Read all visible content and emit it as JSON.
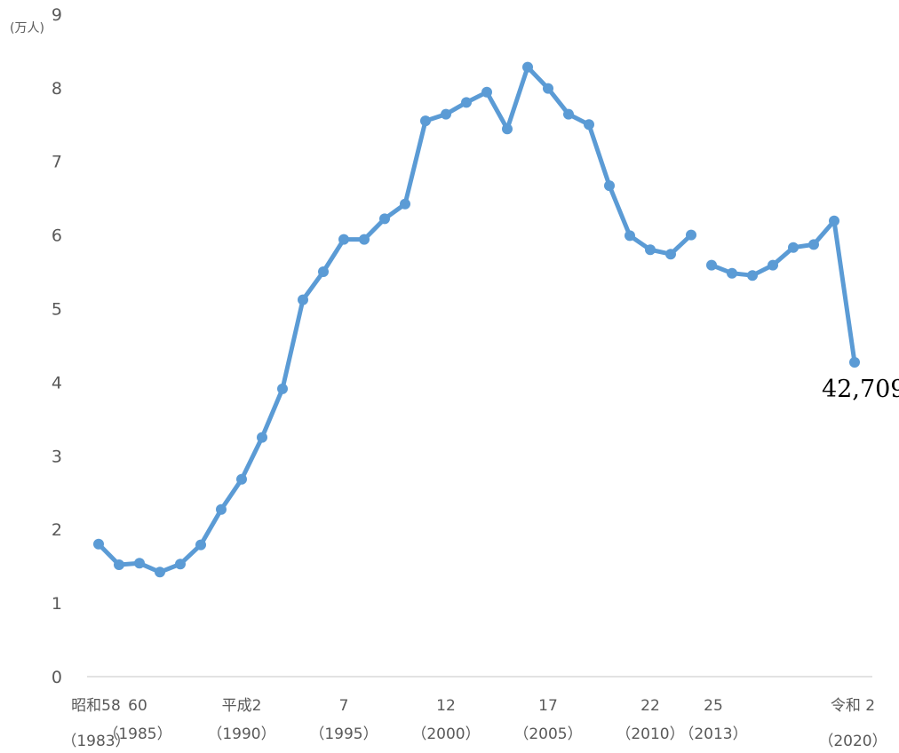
{
  "chart_data": {
    "type": "line",
    "title": "",
    "xlabel": "",
    "ylabel": "(万人)",
    "ylim": [
      0,
      9
    ],
    "yticks": [
      "0",
      "1",
      "2",
      "3",
      "4",
      "5",
      "6",
      "7",
      "8",
      "9"
    ],
    "grid": false,
    "line_color": "#5b9bd5",
    "x_labels": [
      {
        "year": 1983,
        "era": "昭和58",
        "western": "（1983）"
      },
      {
        "year": 1985,
        "era": "60",
        "western": "（1985）"
      },
      {
        "year": 1990,
        "era": "平成2",
        "western": "（1990）"
      },
      {
        "year": 1995,
        "era": "7",
        "western": "（1995）"
      },
      {
        "year": 2000,
        "era": "12",
        "western": "（2000）"
      },
      {
        "year": 2005,
        "era": "17",
        "western": "（2005）"
      },
      {
        "year": 2010,
        "era": "22",
        "western": "（2010）"
      },
      {
        "year": 2013,
        "era": "25",
        "western": "（2013）"
      },
      {
        "year": 2020,
        "era": "令和 2",
        "western": "（2020）"
      }
    ],
    "series": [
      {
        "segments": [
          {
            "x": [
              1983,
              1984,
              1985,
              1986,
              1987,
              1988,
              1989,
              1990,
              1991,
              1992,
              1993,
              1994,
              1995,
              1996,
              1997,
              1998,
              1999,
              2000,
              2001,
              2002,
              2003,
              2004,
              2005,
              2006,
              2007,
              2008,
              2009,
              2010,
              2011,
              2012
            ],
            "y": [
              1.8,
              1.52,
              1.54,
              1.42,
              1.53,
              1.79,
              2.27,
              2.68,
              3.25,
              3.91,
              5.12,
              5.5,
              5.94,
              5.94,
              6.22,
              6.42,
              7.55,
              7.64,
              7.8,
              7.94,
              7.44,
              8.28,
              7.99,
              7.64,
              7.5,
              6.67,
              5.99,
              5.8,
              5.74,
              6.0
            ]
          },
          {
            "x": [
              2013,
              2014,
              2015,
              2016,
              2017,
              2018,
              2019,
              2020
            ],
            "y": [
              5.59,
              5.48,
              5.45,
              5.59,
              5.83,
              5.87,
              6.19,
              4.27
            ]
          }
        ]
      }
    ],
    "annotations": [
      {
        "x": 2020,
        "y": 4.2709,
        "text": "42,709"
      }
    ]
  }
}
